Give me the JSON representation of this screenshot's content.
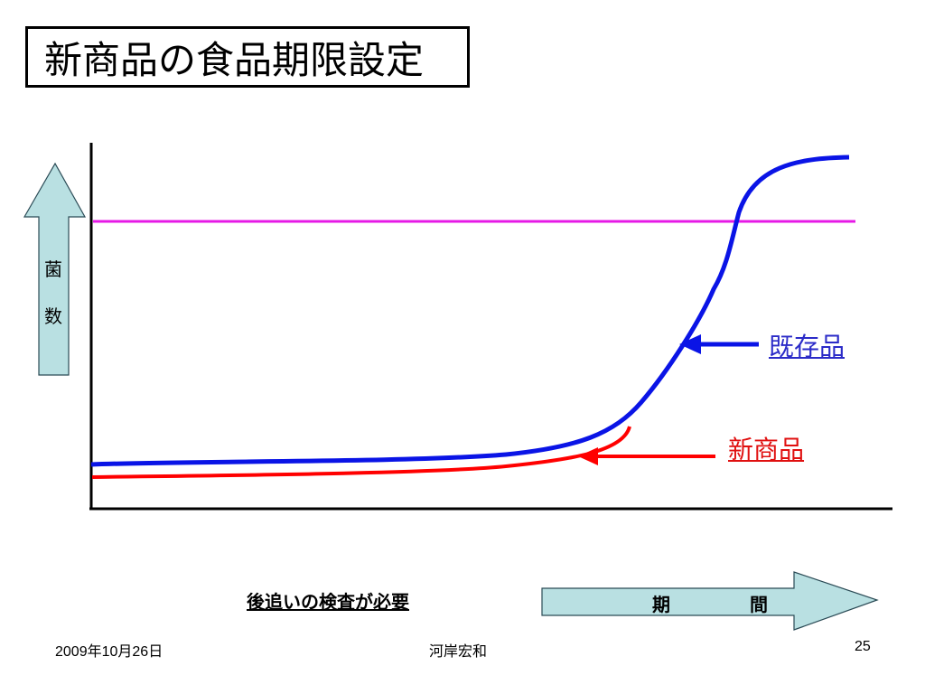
{
  "slide": {
    "title": "新商品の食品期限設定",
    "y_axis_label": [
      "菌",
      "数"
    ],
    "labels": {
      "existing_product": "既存品",
      "new_product": "新商品"
    },
    "note": "後追いの検査が必要",
    "x_axis_label": "期　間"
  },
  "footer": {
    "date": "2009年10月26日",
    "author": "河岸宏和",
    "page": "25"
  },
  "colors": {
    "existing_curve": "#0a14e6",
    "new_curve": "#ff0000",
    "limit_line": "#e619e6",
    "arrow_fill": "#b9e0e2"
  }
}
